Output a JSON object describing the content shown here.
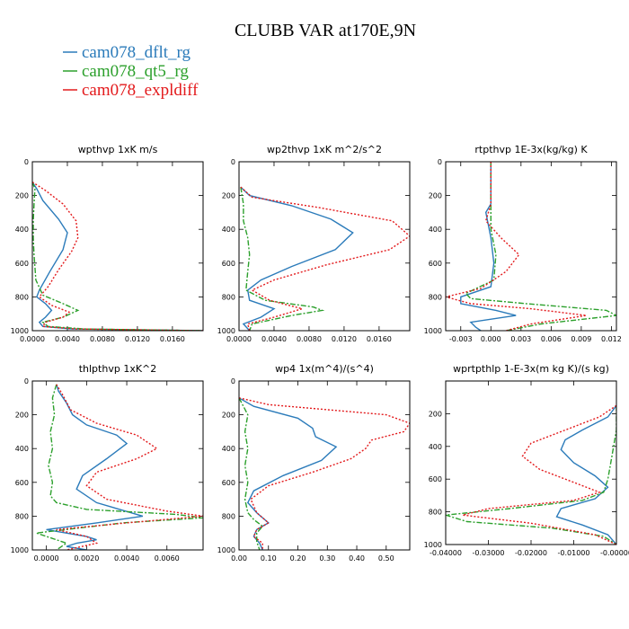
{
  "title": "CLUBB VAR at170E,9N",
  "legend": [
    {
      "label": "cam078_dflt_rg",
      "color": "#2b7bba"
    },
    {
      "label": "cam078_qt5_rg",
      "color": "#2ca02c"
    },
    {
      "label": "cam078_expldiff",
      "color": "#e31a1c"
    }
  ],
  "chart_data": [
    {
      "type": "line",
      "title": "wpthvp   1xK m/s",
      "xlim": [
        0,
        0.0195
      ],
      "ylim": [
        1000,
        0
      ],
      "xticks": [
        0,
        0.004,
        0.008,
        0.012,
        0.016
      ],
      "xticklabels": [
        "0.0000",
        "0.0040",
        "0.0080",
        "0.0120",
        "0.0160"
      ],
      "yticks": [
        0,
        200,
        400,
        600,
        800,
        1000
      ],
      "yticklabels": [
        "0",
        "200",
        "400",
        "600",
        "800",
        "1000"
      ],
      "series": [
        {
          "name": "cam078_dflt_rg",
          "x": [
            0,
            0.0005,
            0.0012,
            0.003,
            0.004,
            0.0035,
            0.002,
            0.0008,
            0.0005,
            0.0015,
            0.0022,
            0.0015,
            0.0008,
            0.0012,
            0.0045,
            0.0195
          ],
          "y": [
            120,
            160,
            230,
            340,
            420,
            520,
            650,
            760,
            800,
            840,
            880,
            920,
            950,
            975,
            990,
            1000
          ]
        },
        {
          "name": "cam078_qt5_rg",
          "x": [
            0,
            0.0003,
            0.0002,
            0.0001,
            0.0001,
            0.0002,
            0.0004,
            0.0012,
            0.0035,
            0.0052,
            0.0035,
            0.0012,
            0.0018,
            0.006,
            0.0195
          ],
          "y": [
            120,
            160,
            250,
            350,
            450,
            550,
            700,
            790,
            840,
            880,
            920,
            950,
            975,
            990,
            1000
          ]
        },
        {
          "name": "cam078_expldiff",
          "x": [
            0,
            0.0015,
            0.0035,
            0.005,
            0.0052,
            0.0045,
            0.003,
            0.0018,
            0.0008,
            0.0022,
            0.0042,
            0.0035,
            0.0015,
            0.0012,
            0.005,
            0.0195
          ],
          "y": [
            120,
            170,
            250,
            350,
            450,
            530,
            640,
            740,
            800,
            850,
            890,
            920,
            950,
            975,
            990,
            1000
          ]
        }
      ]
    },
    {
      "type": "line",
      "title": "wp2thvp   1xK m^2/s^2",
      "xlim": [
        0,
        0.0195
      ],
      "ylim": [
        1000,
        0
      ],
      "xticks": [
        0,
        0.004,
        0.008,
        0.012,
        0.016
      ],
      "xticklabels": [
        "0.0000",
        "0.0040",
        "0.0080",
        "0.0120",
        "0.0160"
      ],
      "yticks": [
        0,
        200,
        400,
        600,
        800,
        1000
      ],
      "yticklabels": [
        "0",
        "200",
        "400",
        "600",
        "800",
        "1000"
      ],
      "series": [
        {
          "name": "cam078_dflt_rg",
          "x": [
            0.0002,
            0.0012,
            0.006,
            0.0105,
            0.013,
            0.011,
            0.006,
            0.0025,
            0.001,
            0.0012,
            0.004,
            0.0025,
            0.0005,
            0.0012
          ],
          "y": [
            150,
            200,
            260,
            340,
            420,
            520,
            620,
            700,
            760,
            820,
            870,
            920,
            960,
            1000
          ]
        },
        {
          "name": "cam078_qt5_rg",
          "x": [
            0.0002,
            0.0005,
            0.0005,
            0.001,
            0.0012,
            0.001,
            0.0008,
            0.003,
            0.0085,
            0.0095,
            0.006,
            0.0015,
            0.0012
          ],
          "y": [
            150,
            250,
            350,
            450,
            550,
            650,
            760,
            820,
            860,
            880,
            910,
            960,
            1000
          ]
        },
        {
          "name": "cam078_expldiff",
          "x": [
            0.0002,
            0.0015,
            0.009,
            0.0175,
            0.0195,
            0.0172,
            0.01,
            0.004,
            0.0015,
            0.0035,
            0.0072,
            0.004,
            0.001,
            0.0012
          ],
          "y": [
            150,
            210,
            270,
            350,
            440,
            520,
            610,
            700,
            760,
            820,
            870,
            920,
            960,
            1000
          ]
        }
      ]
    },
    {
      "type": "line",
      "title": "rtpthvp   1E-3x(kg/kg) K",
      "xlim": [
        -0.0045,
        0.0125
      ],
      "ylim": [
        1000,
        0
      ],
      "xticks": [
        -0.003,
        0,
        0.003,
        0.006,
        0.009,
        0.012
      ],
      "xticklabels": [
        "-0.003",
        "0.000",
        "0.003",
        "0.006",
        "0.009",
        "0.012"
      ],
      "yticks": [
        0,
        200,
        400,
        600,
        800,
        1000
      ],
      "yticklabels": [
        "0",
        "200",
        "400",
        "600",
        "800",
        "1000"
      ],
      "series": [
        {
          "name": "cam078_dflt_rg",
          "x": [
            0,
            0,
            -0.0005,
            0,
            0.0003,
            0,
            -0.003,
            -0.003,
            0.0005,
            0.0025,
            -0.002,
            -0.0015,
            -0.001
          ],
          "y": [
            0,
            250,
            300,
            450,
            600,
            740,
            800,
            840,
            880,
            910,
            950,
            980,
            1000
          ]
        },
        {
          "name": "cam078_qt5_rg",
          "x": [
            0,
            0,
            0,
            0.0005,
            0.0003,
            -0.0025,
            -0.002,
            0.0035,
            0.0115,
            0.0125,
            0.005,
            0.0015
          ],
          "y": [
            0,
            250,
            400,
            550,
            700,
            780,
            810,
            840,
            880,
            910,
            960,
            1000
          ]
        },
        {
          "name": "cam078_expldiff",
          "x": [
            0,
            0,
            -0.0005,
            0.001,
            0.0028,
            0.0015,
            -0.001,
            -0.0045,
            -0.002,
            0.004,
            0.0095,
            0.004,
            0.0015
          ],
          "y": [
            0,
            250,
            350,
            450,
            550,
            650,
            750,
            800,
            840,
            870,
            910,
            960,
            1000
          ]
        }
      ]
    },
    {
      "type": "line",
      "title": "thlpthvp   1xK^2",
      "xlim": [
        -0.0007,
        0.0078
      ],
      "ylim": [
        1000,
        0
      ],
      "xticks": [
        0,
        0.002,
        0.004,
        0.006
      ],
      "xticklabels": [
        "0.0000",
        "0.0020",
        "0.0040",
        "0.0060"
      ],
      "yticks": [
        0,
        200,
        400,
        600,
        800,
        1000
      ],
      "yticklabels": [
        "0",
        "200",
        "400",
        "600",
        "800",
        "1000"
      ],
      "series": [
        {
          "name": "cam078_dflt_rg",
          "x": [
            0.0005,
            0.0006,
            0.001,
            0.0013,
            0.002,
            0.0035,
            0.004,
            0.003,
            0.0018,
            0.0015,
            0.0025,
            0.0048,
            0.0025,
            0.0,
            0.002,
            0.0025,
            0.0015,
            0.001,
            0.002
          ],
          "y": [
            20,
            60,
            130,
            200,
            260,
            320,
            370,
            460,
            560,
            640,
            720,
            800,
            840,
            880,
            920,
            940,
            960,
            980,
            1000
          ]
        },
        {
          "name": "cam078_qt5_rg",
          "x": [
            0.0005,
            0.0003,
            0.0004,
            0.0002,
            0.0003,
            0.0001,
            0.0003,
            0.0002,
            0.0005,
            0.002,
            0.0065,
            0.0078,
            0.0038,
            -0.0005,
            0.001,
            0.0005
          ],
          "y": [
            20,
            100,
            200,
            300,
            400,
            500,
            600,
            680,
            720,
            760,
            790,
            810,
            840,
            900,
            960,
            1000
          ]
        },
        {
          "name": "cam078_expldiff",
          "x": [
            0.0005,
            0.0008,
            0.0012,
            0.0025,
            0.0045,
            0.0055,
            0.0045,
            0.0025,
            0.002,
            0.003,
            0.006,
            0.0078,
            0.004,
            0.0005,
            0.002,
            0.0025,
            0.001
          ],
          "y": [
            20,
            80,
            170,
            250,
            320,
            400,
            460,
            540,
            620,
            700,
            770,
            800,
            840,
            880,
            920,
            960,
            1000
          ]
        }
      ]
    },
    {
      "type": "line",
      "title": "wp4   1x(m^4)/(s^4)",
      "xlim": [
        0,
        0.58
      ],
      "ylim": [
        1000,
        0
      ],
      "xticks": [
        0,
        0.1,
        0.2,
        0.3,
        0.4,
        0.5
      ],
      "xticklabels": [
        "0.00",
        "0.10",
        "0.20",
        "0.30",
        "0.40",
        "0.50"
      ],
      "yticks": [
        0,
        200,
        400,
        600,
        800,
        1000
      ],
      "yticklabels": [
        "0",
        "200",
        "400",
        "600",
        "800",
        "1000"
      ],
      "series": [
        {
          "name": "cam078_dflt_rg",
          "x": [
            0.0,
            0.05,
            0.2,
            0.25,
            0.26,
            0.33,
            0.28,
            0.15,
            0.05,
            0.03,
            0.06,
            0.1,
            0.06,
            0.05,
            0.07,
            0.08
          ],
          "y": [
            100,
            150,
            220,
            280,
            330,
            390,
            470,
            560,
            650,
            720,
            780,
            840,
            880,
            920,
            960,
            1000
          ]
        },
        {
          "name": "cam078_qt5_rg",
          "x": [
            0.0,
            0.03,
            0.02,
            0.03,
            0.02,
            0.03,
            0.02,
            0.03,
            0.05,
            0.08,
            0.06,
            0.06,
            0.07
          ],
          "y": [
            100,
            200,
            300,
            400,
            500,
            600,
            700,
            780,
            820,
            860,
            900,
            950,
            1000
          ]
        },
        {
          "name": "cam078_expldiff",
          "x": [
            0.0,
            0.1,
            0.5,
            0.58,
            0.56,
            0.45,
            0.43,
            0.38,
            0.25,
            0.1,
            0.04,
            0.06,
            0.1,
            0.06,
            0.05,
            0.08,
            0.08
          ],
          "y": [
            100,
            140,
            200,
            250,
            300,
            350,
            400,
            460,
            540,
            620,
            700,
            780,
            840,
            880,
            920,
            960,
            1000
          ]
        }
      ]
    },
    {
      "type": "line",
      "title": "wprtpthlp   1-E-3x(m kg K)/(s kg)",
      "xlim": [
        -0.04,
        0.0
      ],
      "ylim": [
        1000,
        0
      ],
      "xticks": [
        -0.04,
        -0.03,
        -0.02,
        -0.01,
        0.0
      ],
      "xticklabels": [
        "-0.04000",
        "-0.03000",
        "-0.02000",
        "-0.01000",
        "-0.00000"
      ],
      "yticks": [
        200,
        400,
        600,
        800,
        1000
      ],
      "yticklabels": [
        "200",
        "400",
        "600",
        "800",
        "1000"
      ],
      "series": [
        {
          "name": "cam078_dflt_rg",
          "x": [
            0.0,
            -0.002,
            -0.008,
            -0.012,
            -0.013,
            -0.01,
            -0.005,
            -0.002,
            -0.005,
            -0.013,
            -0.014,
            -0.008,
            -0.002,
            0.0
          ],
          "y": [
            150,
            220,
            300,
            360,
            420,
            500,
            580,
            650,
            720,
            780,
            830,
            880,
            940,
            1000
          ]
        },
        {
          "name": "cam078_qt5_rg",
          "x": [
            0.0,
            0.0,
            -0.001,
            -0.002,
            -0.003,
            -0.008,
            -0.025,
            -0.04,
            -0.035,
            -0.015,
            -0.003,
            0.0
          ],
          "y": [
            150,
            300,
            450,
            600,
            680,
            730,
            780,
            820,
            860,
            900,
            950,
            1000
          ]
        },
        {
          "name": "cam078_expldiff",
          "x": [
            0.0,
            -0.004,
            -0.012,
            -0.02,
            -0.022,
            -0.018,
            -0.01,
            -0.004,
            -0.01,
            -0.03,
            -0.036,
            -0.02,
            -0.005,
            0.0
          ],
          "y": [
            150,
            220,
            300,
            380,
            460,
            540,
            620,
            680,
            730,
            780,
            820,
            870,
            940,
            1000
          ]
        }
      ]
    }
  ]
}
